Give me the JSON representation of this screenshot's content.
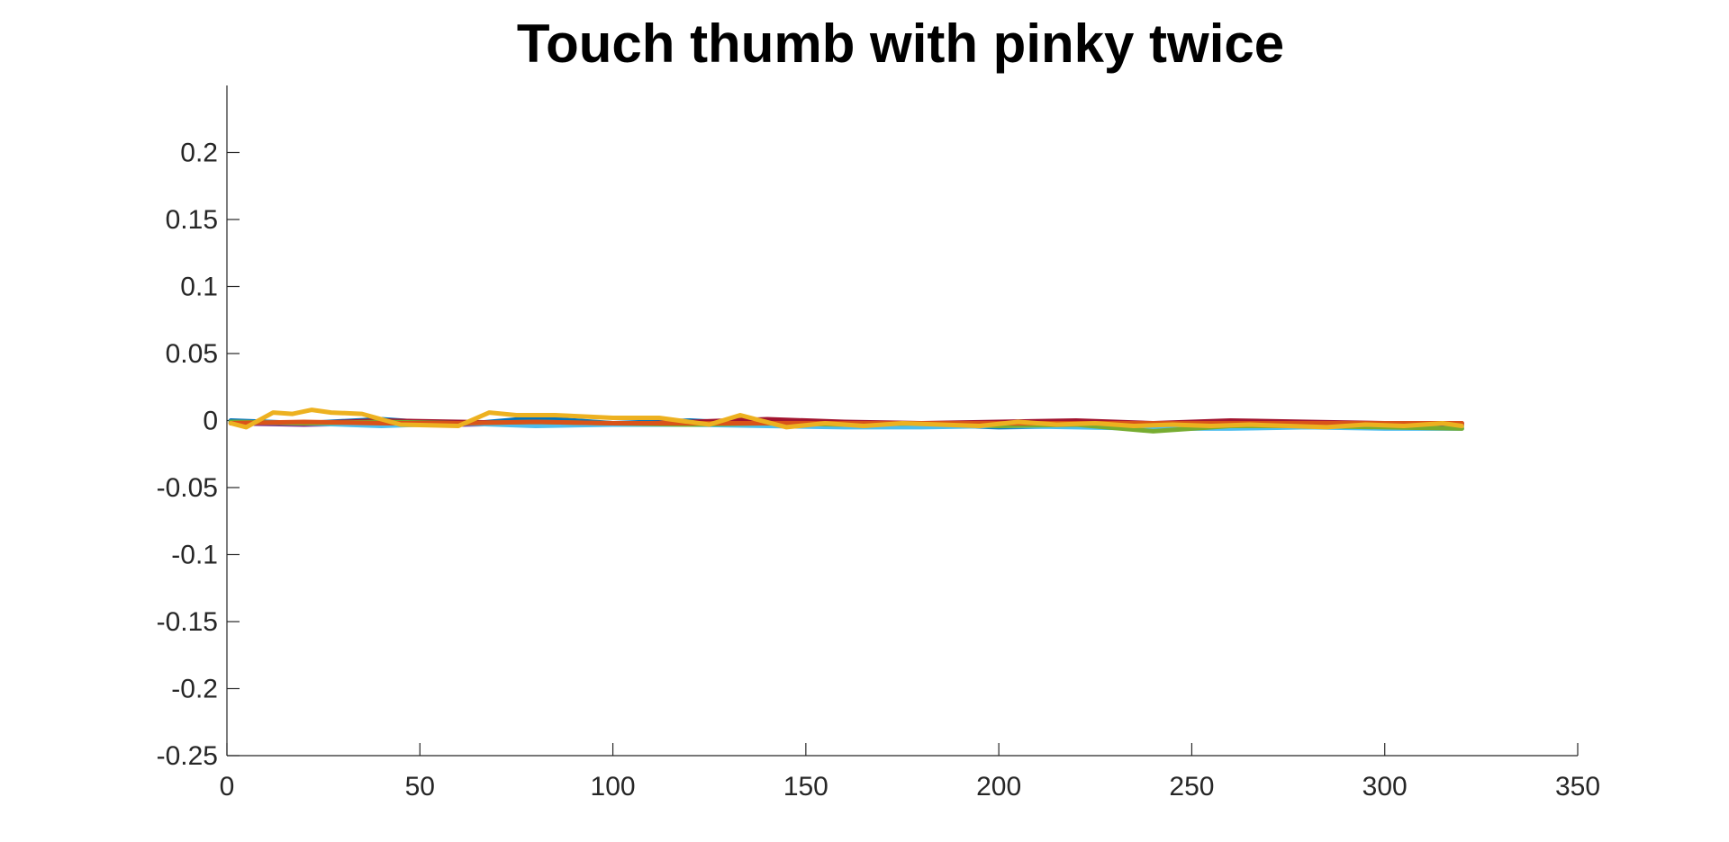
{
  "chart_data": {
    "type": "line",
    "title": "Touch thumb with pinky twice",
    "xlabel": "",
    "ylabel": "",
    "xlim": [
      0,
      350
    ],
    "ylim": [
      -0.25,
      0.25
    ],
    "xticks": [
      0,
      50,
      100,
      150,
      200,
      250,
      300,
      350
    ],
    "xtick_labels": [
      "0",
      "50",
      "100",
      "150",
      "200",
      "250",
      "300",
      "350"
    ],
    "yticks": [
      -0.25,
      -0.2,
      -0.15,
      -0.1,
      -0.05,
      0,
      0.05,
      0.1,
      0.15,
      0.2
    ],
    "ytick_labels": [
      "-0.25",
      "-0.2",
      "-0.15",
      "-0.1",
      "-0.05",
      "0",
      "0.05",
      "0.1",
      "0.15",
      "0.2"
    ],
    "grid": false,
    "legend": "none",
    "series": [
      {
        "color": "#0072BD",
        "x": [
          1,
          20,
          40,
          60,
          80,
          100,
          120,
          140,
          160,
          180,
          200,
          220,
          240,
          260,
          280,
          300,
          320
        ],
        "y": [
          0,
          -0.002,
          0.001,
          -0.003,
          0.002,
          -0.002,
          0,
          -0.003,
          -0.004,
          -0.003,
          -0.005,
          -0.004,
          -0.005,
          -0.003,
          -0.005,
          -0.004,
          -0.004
        ]
      },
      {
        "color": "#A2142F",
        "x": [
          1,
          20,
          40,
          60,
          80,
          100,
          120,
          140,
          160,
          180,
          200,
          220,
          240,
          260,
          280,
          300,
          320
        ],
        "y": [
          -0.002,
          -0.002,
          0,
          -0.001,
          -0.002,
          -0.003,
          -0.001,
          0.001,
          -0.001,
          -0.002,
          -0.001,
          0,
          -0.002,
          0,
          -0.001,
          -0.002,
          -0.002
        ]
      },
      {
        "color": "#7E2F8E",
        "x": [
          1,
          20,
          40,
          60,
          80,
          100,
          120,
          140,
          160,
          180,
          200,
          220,
          240,
          260,
          280,
          300,
          320
        ],
        "y": [
          -0.002,
          -0.003,
          -0.002,
          -0.003,
          -0.002,
          -0.003,
          -0.002,
          -0.003,
          -0.003,
          -0.002,
          -0.003,
          -0.002,
          -0.003,
          -0.002,
          -0.003,
          -0.002,
          -0.003
        ]
      },
      {
        "color": "#4DBEEE",
        "x": [
          1,
          20,
          40,
          60,
          80,
          100,
          120,
          140,
          160,
          180,
          200,
          220,
          240,
          260,
          280,
          300,
          320
        ],
        "y": [
          -0.001,
          -0.002,
          -0.004,
          -0.002,
          -0.004,
          -0.003,
          -0.003,
          -0.004,
          -0.005,
          -0.005,
          -0.004,
          -0.005,
          -0.006,
          -0.006,
          -0.005,
          -0.006,
          -0.006
        ]
      },
      {
        "color": "#77AC30",
        "x": [
          1,
          20,
          40,
          60,
          80,
          100,
          120,
          140,
          160,
          180,
          200,
          220,
          240,
          260,
          280,
          300,
          320
        ],
        "y": [
          -0.001,
          -0.002,
          -0.001,
          -0.002,
          -0.001,
          -0.002,
          -0.003,
          -0.002,
          -0.003,
          -0.002,
          -0.004,
          -0.003,
          -0.008,
          -0.004,
          -0.004,
          -0.005,
          -0.006
        ]
      },
      {
        "color": "#D95319",
        "x": [
          1,
          20,
          40,
          60,
          80,
          100,
          120,
          140,
          160,
          180,
          200,
          220,
          240,
          260,
          280,
          300,
          320
        ],
        "y": [
          -0.002,
          -0.001,
          -0.002,
          -0.002,
          -0.001,
          -0.002,
          -0.002,
          -0.002,
          -0.002,
          -0.002,
          -0.002,
          -0.002,
          -0.002,
          -0.002,
          -0.002,
          -0.002,
          -0.002
        ]
      },
      {
        "color": "#EDB120",
        "x": [
          1,
          5,
          12,
          17,
          22,
          27,
          35,
          45,
          60,
          68,
          75,
          85,
          100,
          112,
          125,
          133,
          145,
          155,
          165,
          175,
          185,
          195,
          205,
          215,
          225,
          235,
          245,
          255,
          265,
          275,
          285,
          295,
          305,
          315,
          320
        ],
        "y": [
          -0.002,
          -0.005,
          0.006,
          0.005,
          0.008,
          0.006,
          0.005,
          -0.003,
          -0.004,
          0.006,
          0.004,
          0.004,
          0.002,
          0.002,
          -0.003,
          0.004,
          -0.005,
          -0.002,
          -0.004,
          -0.002,
          -0.003,
          -0.004,
          -0.001,
          -0.003,
          -0.002,
          -0.004,
          -0.003,
          -0.004,
          -0.003,
          -0.004,
          -0.005,
          -0.003,
          -0.004,
          -0.002,
          -0.004
        ]
      }
    ]
  }
}
